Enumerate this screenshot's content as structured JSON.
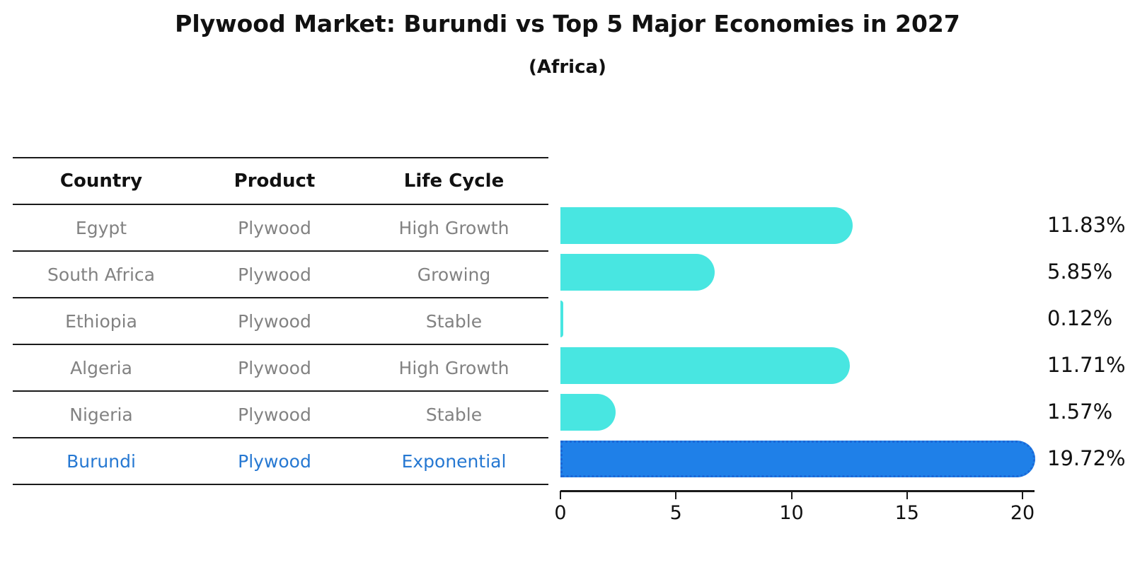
{
  "title": "Plywood Market: Burundi vs Top 5 Major Economies in 2027",
  "subtitle": "(Africa)",
  "table": {
    "headers": [
      "Country",
      "Product",
      "Life Cycle"
    ],
    "rows": [
      {
        "country": "Egypt",
        "product": "Plywood",
        "life_cycle": "High Growth",
        "highlight": false
      },
      {
        "country": "South Africa",
        "product": "Plywood",
        "life_cycle": "Growing",
        "highlight": false
      },
      {
        "country": "Ethiopia",
        "product": "Plywood",
        "life_cycle": "Stable",
        "highlight": false
      },
      {
        "country": "Algeria",
        "product": "Plywood",
        "life_cycle": "High Growth",
        "highlight": false
      },
      {
        "country": "Nigeria",
        "product": "Plywood",
        "life_cycle": "Stable",
        "highlight": false
      },
      {
        "country": "Burundi",
        "product": "Plywood",
        "life_cycle": "Exponential",
        "highlight": true
      }
    ]
  },
  "chart_data": {
    "type": "bar",
    "orientation": "horizontal",
    "categories": [
      "Egypt",
      "South Africa",
      "Ethiopia",
      "Algeria",
      "Nigeria",
      "Burundi"
    ],
    "values": [
      11.83,
      5.85,
      0.12,
      11.71,
      1.57,
      19.72
    ],
    "value_labels": [
      "11.83%",
      "5.85%",
      "0.12%",
      "11.71%",
      "1.57%",
      "19.72%"
    ],
    "highlight_index": 5,
    "x_ticks": [
      "0",
      "5",
      "10",
      "15",
      "20"
    ],
    "x_tick_values": [
      0,
      5,
      10,
      15,
      20
    ],
    "xlim": [
      0,
      20
    ],
    "grid": false,
    "legend": "none",
    "bar_color": "#48E6E1",
    "highlight_bar_color": "#1F80E8",
    "highlight_text_color": "#2678D2"
  }
}
